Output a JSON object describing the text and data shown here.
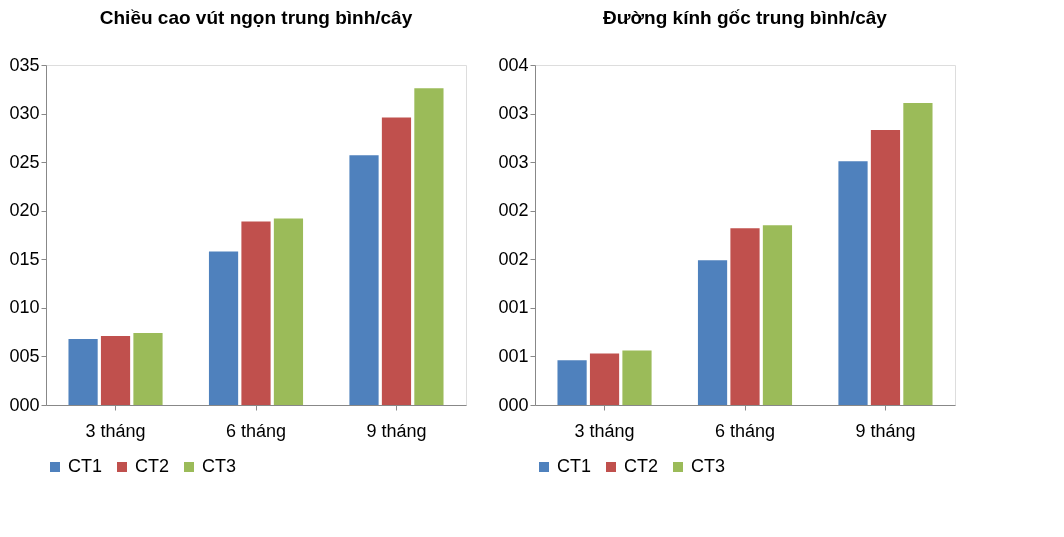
{
  "chart_data": [
    {
      "type": "bar",
      "title": "Chiều cao vút ngọn trung bình/cây",
      "categories": [
        "3 tháng",
        "6 tháng",
        "9 tháng"
      ],
      "series": [
        {
          "name": "CT1",
          "color": "#4f81bd",
          "values": [
            6.8,
            15.8,
            25.7
          ]
        },
        {
          "name": "CT2",
          "color": "#c0504d",
          "values": [
            7.1,
            18.9,
            29.6
          ]
        },
        {
          "name": "CT3",
          "color": "#9bbb59",
          "values": [
            7.4,
            19.2,
            32.6
          ]
        }
      ],
      "ylim": [
        0,
        35
      ],
      "yticks": [
        {
          "value": 0,
          "label": "000"
        },
        {
          "value": 5,
          "label": "005"
        },
        {
          "value": 10,
          "label": "010"
        },
        {
          "value": 15,
          "label": "015"
        },
        {
          "value": 20,
          "label": "020"
        },
        {
          "value": 25,
          "label": "025"
        },
        {
          "value": 30,
          "label": "030"
        },
        {
          "value": 35,
          "label": "035"
        }
      ],
      "grid": false,
      "legend": "bottom"
    },
    {
      "type": "bar",
      "title": "Đường kính gốc trung bình/cây",
      "categories": [
        "3 tháng",
        "6 tháng",
        "9 tháng"
      ],
      "series": [
        {
          "name": "CT1",
          "color": "#4f81bd",
          "values": [
            0.46,
            1.49,
            2.51
          ]
        },
        {
          "name": "CT2",
          "color": "#c0504d",
          "values": [
            0.53,
            1.82,
            2.83
          ]
        },
        {
          "name": "CT3",
          "color": "#9bbb59",
          "values": [
            0.56,
            1.85,
            3.11
          ]
        }
      ],
      "ylim": [
        0,
        3.5
      ],
      "yticks": [
        {
          "value": 0,
          "label": "000"
        },
        {
          "value": 0.5,
          "label": "001"
        },
        {
          "value": 1,
          "label": "001"
        },
        {
          "value": 1.5,
          "label": "002"
        },
        {
          "value": 2,
          "label": "002"
        },
        {
          "value": 2.5,
          "label": "003"
        },
        {
          "value": 3,
          "label": "003"
        },
        {
          "value": 3.5,
          "label": "004"
        }
      ],
      "grid": false,
      "legend": "bottom"
    }
  ]
}
